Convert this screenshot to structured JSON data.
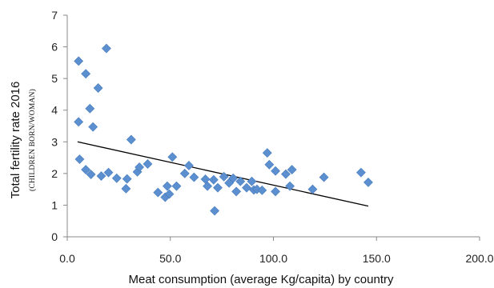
{
  "chart_data": {
    "type": "scatter",
    "xlabel": "Meat consumption (average Kg/capita) by country",
    "ylabel": "Total fertility rate 2016",
    "ylabel_sub": "(CHILDREN BORN/WOMAN)",
    "xlim": [
      0,
      200
    ],
    "ylim": [
      0,
      7
    ],
    "xticks": [
      0,
      50,
      100,
      150,
      200
    ],
    "xtick_labels": [
      "0.0",
      "50.0",
      "100.0",
      "150.0",
      "200.0"
    ],
    "yticks": [
      0,
      1,
      2,
      3,
      4,
      5,
      6,
      7
    ],
    "ytick_labels": [
      "0",
      "1",
      "2",
      "3",
      "4",
      "5",
      "6",
      "7"
    ],
    "grid": false,
    "legend": "none",
    "marker": "diamond",
    "marker_color": "#5b8fcf",
    "trendline_color": "#000000",
    "trendline": {
      "x": [
        5,
        146
      ],
      "y": [
        3.0,
        0.97
      ]
    },
    "points": [
      {
        "x": 5.5,
        "y": 5.55
      },
      {
        "x": 9.0,
        "y": 5.15
      },
      {
        "x": 19.0,
        "y": 5.95
      },
      {
        "x": 15.0,
        "y": 4.7
      },
      {
        "x": 11.0,
        "y": 4.05
      },
      {
        "x": 12.5,
        "y": 3.47
      },
      {
        "x": 5.5,
        "y": 3.63
      },
      {
        "x": 31.0,
        "y": 3.07
      },
      {
        "x": 6.0,
        "y": 2.45
      },
      {
        "x": 9.0,
        "y": 2.12
      },
      {
        "x": 11.5,
        "y": 1.97
      },
      {
        "x": 16.5,
        "y": 1.92
      },
      {
        "x": 20.0,
        "y": 2.03
      },
      {
        "x": 24.0,
        "y": 1.85
      },
      {
        "x": 29.0,
        "y": 1.83
      },
      {
        "x": 28.5,
        "y": 1.52
      },
      {
        "x": 34.0,
        "y": 2.05
      },
      {
        "x": 35.0,
        "y": 2.2
      },
      {
        "x": 39.0,
        "y": 2.3
      },
      {
        "x": 44.0,
        "y": 1.4
      },
      {
        "x": 47.5,
        "y": 1.25
      },
      {
        "x": 48.5,
        "y": 1.6
      },
      {
        "x": 49.5,
        "y": 1.35
      },
      {
        "x": 51.0,
        "y": 2.52
      },
      {
        "x": 53.0,
        "y": 1.6
      },
      {
        "x": 57.0,
        "y": 2.0
      },
      {
        "x": 59.0,
        "y": 2.25
      },
      {
        "x": 61.5,
        "y": 1.88
      },
      {
        "x": 67.0,
        "y": 1.82
      },
      {
        "x": 68.0,
        "y": 1.6
      },
      {
        "x": 71.0,
        "y": 1.8
      },
      {
        "x": 71.5,
        "y": 0.82
      },
      {
        "x": 73.0,
        "y": 1.55
      },
      {
        "x": 76.0,
        "y": 1.9
      },
      {
        "x": 78.5,
        "y": 1.7
      },
      {
        "x": 80.5,
        "y": 1.85
      },
      {
        "x": 82.0,
        "y": 1.43
      },
      {
        "x": 84.0,
        "y": 1.75
      },
      {
        "x": 87.0,
        "y": 1.55
      },
      {
        "x": 89.5,
        "y": 1.75
      },
      {
        "x": 90.5,
        "y": 1.48
      },
      {
        "x": 92.0,
        "y": 1.5
      },
      {
        "x": 94.5,
        "y": 1.47
      },
      {
        "x": 97.0,
        "y": 2.65
      },
      {
        "x": 98.0,
        "y": 2.28
      },
      {
        "x": 101.0,
        "y": 2.08
      },
      {
        "x": 101.0,
        "y": 1.43
      },
      {
        "x": 106.0,
        "y": 1.98
      },
      {
        "x": 108.0,
        "y": 1.6
      },
      {
        "x": 109.0,
        "y": 2.12
      },
      {
        "x": 119.0,
        "y": 1.5
      },
      {
        "x": 124.5,
        "y": 1.88
      },
      {
        "x": 142.5,
        "y": 2.03
      },
      {
        "x": 146.0,
        "y": 1.72
      }
    ]
  }
}
